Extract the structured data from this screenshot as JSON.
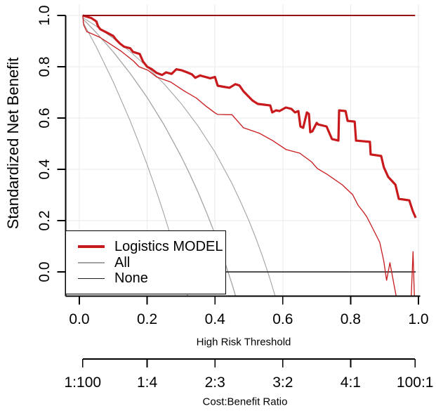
{
  "chart_data": {
    "type": "line",
    "title": "",
    "xlabel": "High Risk Threshold",
    "ylabel": "Standardized Net Benefit",
    "x2label": "Cost:Benefit Ratio",
    "xlim": [
      -0.04,
      1.04
    ],
    "ylim": [
      -0.093,
      1.042
    ],
    "grid": true,
    "grid_color": "#EAEAEA",
    "axis_color": "#000000",
    "x_ticks": {
      "values": [
        0,
        0.2,
        0.4,
        0.6,
        0.8,
        1
      ],
      "labels": [
        "0.0",
        "0.2",
        "0.4",
        "0.6",
        "0.8",
        "1.0"
      ]
    },
    "y_ticks": {
      "values": [
        0,
        0.2,
        0.4,
        0.6,
        0.8,
        1
      ],
      "labels": [
        "0.0",
        "0.2",
        "0.4",
        "0.6",
        "0.8",
        "1.0"
      ]
    },
    "x2_ticks": {
      "values": [
        0.0099,
        0.2,
        0.4,
        0.6,
        0.8,
        0.9901
      ],
      "labels": [
        "1:100",
        "1:4",
        "2:3",
        "3:2",
        "4:1",
        "100:1"
      ]
    },
    "series": [
      {
        "id": "all-ci-lower",
        "name": "All (lower CI)",
        "role": "ci",
        "color": "#A3A3A3",
        "width": 1.1,
        "points": [
          [
            0.01,
            0.976
          ],
          [
            0.05,
            0.877
          ],
          [
            0.1,
            0.741
          ],
          [
            0.125,
            0.665
          ],
          [
            0.15,
            0.589
          ],
          [
            0.175,
            0.505
          ],
          [
            0.2,
            0.418
          ],
          [
            0.225,
            0.323
          ],
          [
            0.25,
            0.223
          ],
          [
            0.28,
            0.094
          ],
          [
            0.3,
            0.001
          ],
          [
            0.315,
            -0.071
          ],
          [
            0.33,
            -0.148
          ]
        ]
      },
      {
        "id": "all",
        "name": "All",
        "role": "estimate",
        "color": "#A3A3A3",
        "width": 1.3,
        "points": [
          [
            0.01,
            0.987
          ],
          [
            0.05,
            0.933
          ],
          [
            0.1,
            0.858
          ],
          [
            0.15,
            0.774
          ],
          [
            0.2,
            0.68
          ],
          [
            0.25,
            0.573
          ],
          [
            0.3,
            0.451
          ],
          [
            0.325,
            0.383
          ],
          [
            0.35,
            0.311
          ],
          [
            0.375,
            0.232
          ],
          [
            0.4,
            0.147
          ],
          [
            0.43,
            0.034
          ],
          [
            0.45,
            -0.047
          ],
          [
            0.47,
            -0.135
          ]
        ]
      },
      {
        "id": "all-ci-upper",
        "name": "All (upper CI)",
        "role": "ci",
        "color": "#A3A3A3",
        "width": 1.1,
        "points": [
          [
            0.01,
            0.992
          ],
          [
            0.05,
            0.958
          ],
          [
            0.1,
            0.911
          ],
          [
            0.15,
            0.859
          ],
          [
            0.2,
            0.8
          ],
          [
            0.25,
            0.733
          ],
          [
            0.3,
            0.657
          ],
          [
            0.35,
            0.569
          ],
          [
            0.4,
            0.467
          ],
          [
            0.45,
            0.345
          ],
          [
            0.475,
            0.275
          ],
          [
            0.5,
            0.2
          ],
          [
            0.52,
            0.133
          ],
          [
            0.54,
            0.061
          ],
          [
            0.56,
            -0.018
          ],
          [
            0.585,
            -0.128
          ]
        ]
      },
      {
        "id": "none",
        "name": "None",
        "role": "estimate",
        "color": "#1A1A1A",
        "width": 1.4,
        "points": [
          [
            0.01,
            0.0
          ],
          [
            0.992,
            0.0
          ]
        ]
      },
      {
        "id": "logistics-model-ci-lower",
        "name": "Logistics MODEL (lower CI)",
        "role": "ci",
        "color": "#C8191C",
        "width": 1.3,
        "points": [
          [
            0.01,
            1.0
          ],
          [
            0.013,
            0.962
          ],
          [
            0.022,
            0.937
          ],
          [
            0.06,
            0.915
          ],
          [
            0.092,
            0.888
          ],
          [
            0.122,
            0.862
          ],
          [
            0.16,
            0.822
          ],
          [
            0.176,
            0.8
          ],
          [
            0.203,
            0.786
          ],
          [
            0.228,
            0.76
          ],
          [
            0.27,
            0.74
          ],
          [
            0.31,
            0.705
          ],
          [
            0.345,
            0.678
          ],
          [
            0.37,
            0.65
          ],
          [
            0.4,
            0.62
          ],
          [
            0.408,
            0.614
          ],
          [
            0.45,
            0.613
          ],
          [
            0.484,
            0.562
          ],
          [
            0.498,
            0.556
          ],
          [
            0.532,
            0.54
          ],
          [
            0.57,
            0.512
          ],
          [
            0.61,
            0.477
          ],
          [
            0.65,
            0.463
          ],
          [
            0.684,
            0.43
          ],
          [
            0.702,
            0.403
          ],
          [
            0.73,
            0.381
          ],
          [
            0.775,
            0.34
          ],
          [
            0.806,
            0.301
          ],
          [
            0.822,
            0.26
          ],
          [
            0.838,
            0.233
          ],
          [
            0.848,
            0.214
          ],
          [
            0.862,
            0.178
          ],
          [
            0.886,
            0.115
          ],
          [
            0.898,
            0.041
          ],
          [
            0.906,
            -0.033
          ],
          [
            0.916,
            0.036
          ],
          [
            0.928,
            -0.05
          ],
          [
            0.938,
            -0.12
          ],
          [
            0.978,
            -0.12
          ],
          [
            0.984,
            0.079
          ],
          [
            0.988,
            -0.095
          ]
        ]
      },
      {
        "id": "logistics-model",
        "name": "Logistics MODEL",
        "role": "estimate",
        "color": "#C8191C",
        "width": 3.2,
        "points": [
          [
            0.01,
            1.0
          ],
          [
            0.02,
            0.996
          ],
          [
            0.035,
            0.99
          ],
          [
            0.05,
            0.977
          ],
          [
            0.055,
            0.958
          ],
          [
            0.062,
            0.946
          ],
          [
            0.08,
            0.934
          ],
          [
            0.1,
            0.92
          ],
          [
            0.108,
            0.906
          ],
          [
            0.12,
            0.89
          ],
          [
            0.132,
            0.878
          ],
          [
            0.15,
            0.872
          ],
          [
            0.158,
            0.858
          ],
          [
            0.178,
            0.85
          ],
          [
            0.188,
            0.82
          ],
          [
            0.2,
            0.8
          ],
          [
            0.214,
            0.79
          ],
          [
            0.228,
            0.776
          ],
          [
            0.244,
            0.768
          ],
          [
            0.256,
            0.778
          ],
          [
            0.272,
            0.772
          ],
          [
            0.286,
            0.79
          ],
          [
            0.302,
            0.786
          ],
          [
            0.318,
            0.778
          ],
          [
            0.332,
            0.77
          ],
          [
            0.342,
            0.757
          ],
          [
            0.356,
            0.766
          ],
          [
            0.372,
            0.76
          ],
          [
            0.386,
            0.755
          ],
          [
            0.4,
            0.76
          ],
          [
            0.408,
            0.726
          ],
          [
            0.425,
            0.722
          ],
          [
            0.443,
            0.718
          ],
          [
            0.46,
            0.732
          ],
          [
            0.472,
            0.727
          ],
          [
            0.484,
            0.704
          ],
          [
            0.511,
            0.668
          ],
          [
            0.526,
            0.655
          ],
          [
            0.545,
            0.652
          ],
          [
            0.563,
            0.649
          ],
          [
            0.569,
            0.622
          ],
          [
            0.58,
            0.63
          ],
          [
            0.59,
            0.627
          ],
          [
            0.609,
            0.641
          ],
          [
            0.625,
            0.636
          ],
          [
            0.636,
            0.622
          ],
          [
            0.646,
            0.627
          ],
          [
            0.652,
            0.567
          ],
          [
            0.66,
            0.562
          ],
          [
            0.671,
            0.622
          ],
          [
            0.677,
            0.616
          ],
          [
            0.681,
            0.545
          ],
          [
            0.687,
            0.548
          ],
          [
            0.7,
            0.581
          ],
          [
            0.704,
            0.575
          ],
          [
            0.729,
            0.567
          ],
          [
            0.745,
            0.518
          ],
          [
            0.764,
            0.512
          ],
          [
            0.766,
            0.63
          ],
          [
            0.785,
            0.627
          ],
          [
            0.791,
            0.589
          ],
          [
            0.812,
            0.586
          ],
          [
            0.816,
            0.512
          ],
          [
            0.857,
            0.507
          ],
          [
            0.859,
            0.458
          ],
          [
            0.89,
            0.452
          ],
          [
            0.898,
            0.408
          ],
          [
            0.911,
            0.37
          ],
          [
            0.932,
            0.34
          ],
          [
            0.942,
            0.285
          ],
          [
            0.973,
            0.279
          ],
          [
            0.983,
            0.238
          ],
          [
            0.992,
            0.211
          ]
        ]
      },
      {
        "id": "logistics-model-ci-upper",
        "name": "Logistics MODEL (upper CI)",
        "role": "ci",
        "color": "#9C0F12",
        "width": 2,
        "points": [
          [
            0.01,
            1.0
          ],
          [
            0.99,
            1.0
          ]
        ]
      }
    ],
    "legend": {
      "position": "bottom-left",
      "items": [
        {
          "label": "Logistics MODEL",
          "color": "#C8191C",
          "line_height": 4
        },
        {
          "label": "All",
          "color": "#A3A3A3",
          "line_height": 1.5
        },
        {
          "label": "None",
          "color": "#1A1A1A",
          "line_height": 1.5
        }
      ]
    }
  }
}
